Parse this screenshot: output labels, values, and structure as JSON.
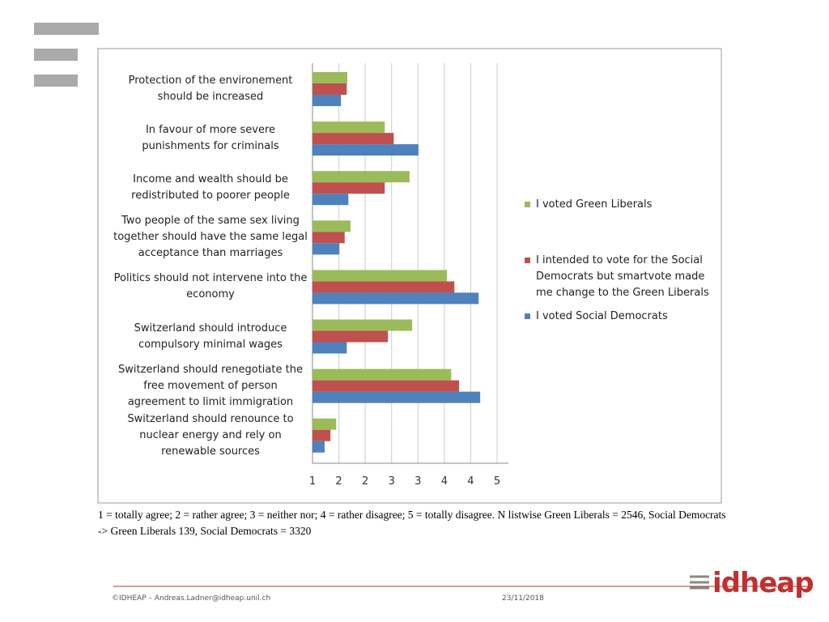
{
  "chart_data": {
    "type": "barh",
    "categories": [
      "Protection of the environement should be increased",
      "In favour of more severe punishments for criminals",
      "Income and wealth should be redistributed to poorer people",
      "Two people of the same sex living together should have the same legal acceptance than marriages",
      "Politics should not intervene into the economy",
      "Switzerland should introduce compulsory minimal wages",
      "Switzerland should renegotiate the free movement of person agreement to limit immigration",
      "Switzerland should renounce to nuclear energy and rely on renewable sources"
    ],
    "series": [
      {
        "name": "I voted Green Liberals",
        "color": "#9bbb59",
        "values": [
          1.66,
          2.37,
          2.84,
          1.72,
          3.55,
          2.89,
          3.63,
          1.45
        ]
      },
      {
        "name": "I intended to vote for the Social Democrats but smartvote made me change to the Green Liberals",
        "color": "#c0504d",
        "values": [
          1.65,
          2.54,
          2.37,
          1.61,
          3.69,
          2.43,
          3.78,
          1.34
        ]
      },
      {
        "name": "I voted Social Democrats",
        "color": "#4f81bd",
        "values": [
          1.54,
          3.01,
          1.68,
          1.51,
          4.15,
          1.65,
          4.18,
          1.23
        ]
      }
    ],
    "xlim": [
      1,
      4.5
    ],
    "xticks": [
      1,
      {
        "value": 1.5,
        "label": "2"
      },
      2,
      {
        "value": 2.5,
        "label": "3"
      },
      3,
      {
        "value": 3.5,
        "label": "4"
      },
      4,
      {
        "value": 4.5,
        "label": "5"
      }
    ],
    "grid": true,
    "legend": "right",
    "note": "1 = totally agree; 2 = rather agree; 3 = neither nor; 4 = rather disagree; 5 = totally disagree. N listwise Green Liberals = 2546, Social Democrats -> Green Liberals 139, Social Democrats = 3320"
  },
  "footer": {
    "copyright": "©IDHEAP – Andreas.Ladner@idheap.unil.ch",
    "date": "23/11/2018",
    "logo": "idheap"
  }
}
